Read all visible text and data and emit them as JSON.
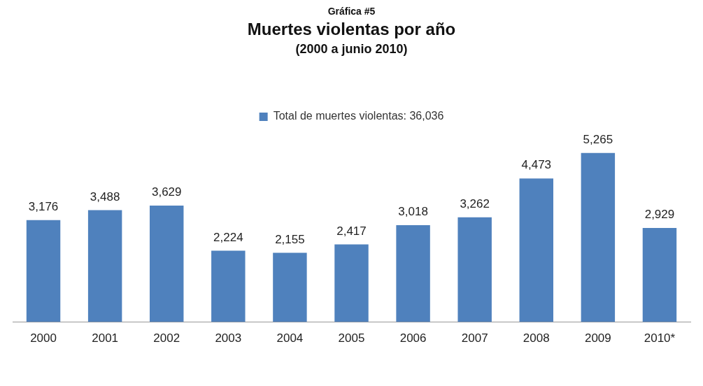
{
  "chart_data": {
    "type": "bar",
    "title": "Muertes violentas por año",
    "subtitle": "(2000 a junio 2010)",
    "annotations": [
      "Gráfica #5"
    ],
    "categories": [
      "2000",
      "2001",
      "2002",
      "2003",
      "2004",
      "2005",
      "2006",
      "2007",
      "2008",
      "2009",
      "2010*"
    ],
    "series": [
      {
        "name": "Total de muertes violentas: 36,036",
        "color": "#4f81bd",
        "values": [
          3176,
          3488,
          3629,
          2224,
          2155,
          2417,
          3018,
          3262,
          4473,
          5265,
          2929
        ],
        "value_labels": [
          "3,176",
          "3,488",
          "3,629",
          "2,224",
          "2,155",
          "2,417",
          "3,018",
          "3,262",
          "4,473",
          "5,265",
          "2,929"
        ]
      }
    ],
    "legend": "top",
    "grid": false
  }
}
